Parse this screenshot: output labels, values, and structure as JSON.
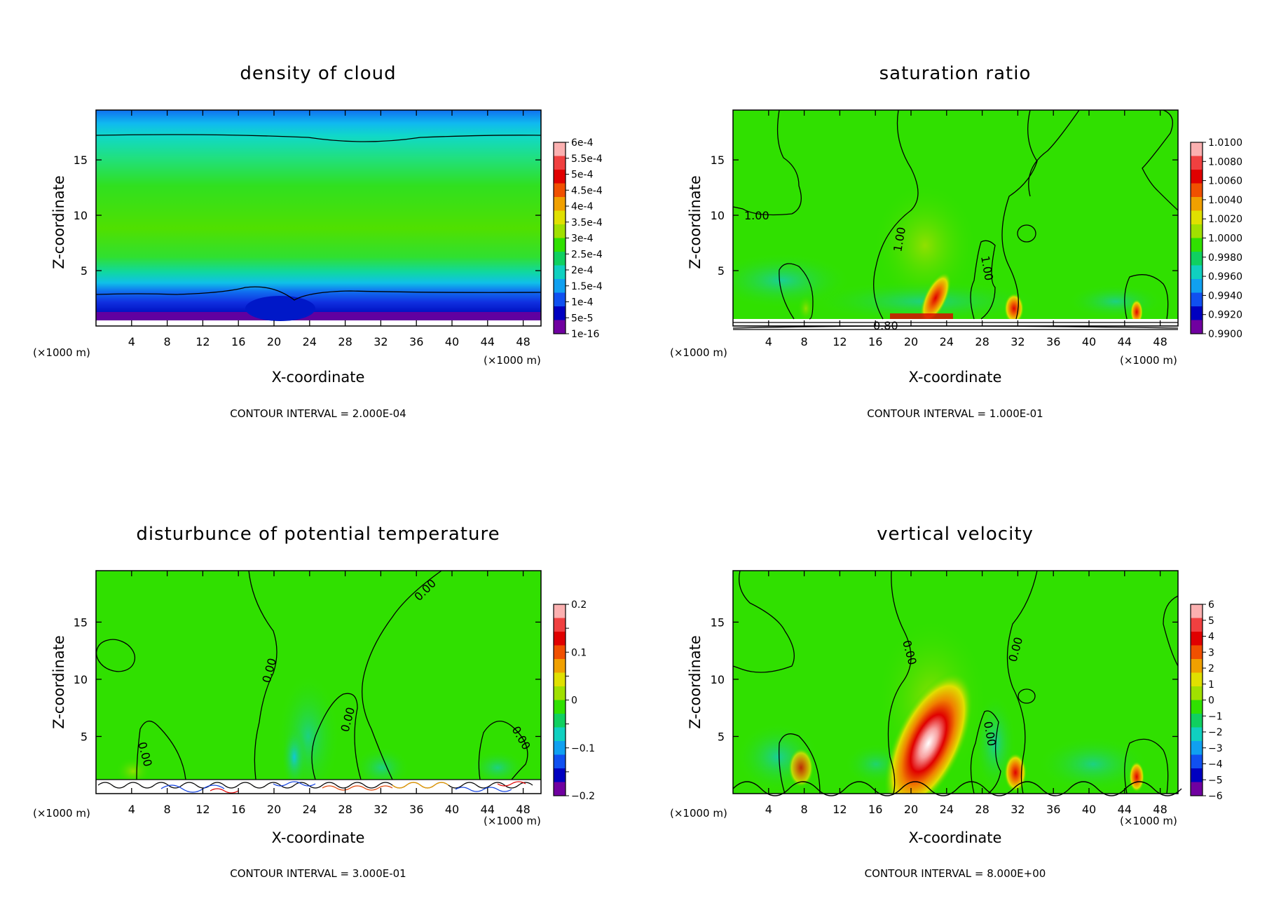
{
  "chart_data": [
    {
      "type": "contour",
      "title": "density of cloud",
      "xlabel": "X-coordinate",
      "ylabel": "Z-coordinate",
      "x_unit": "(×1000 m)",
      "z_unit": "(×1000 m)",
      "x_ticks": [
        "4",
        "8",
        "12",
        "16",
        "20",
        "24",
        "28",
        "32",
        "36",
        "40",
        "44",
        "48"
      ],
      "z_ticks": [
        "5",
        "10",
        "15"
      ],
      "xlim": [
        0,
        50
      ],
      "zlim": [
        0,
        19.5
      ],
      "footer": "CONTOUR INTERVAL = 2.000E-04",
      "colorbar_labels": [
        "6e-4",
        "5.5e-4",
        "5e-4",
        "4.5e-4",
        "4e-4",
        "3.5e-4",
        "3e-4",
        "2.5e-4",
        "2e-4",
        "1.5e-4",
        "1e-4",
        "5e-5",
        "1e-16"
      ],
      "contour_labels": []
    },
    {
      "type": "contour",
      "title": "saturation ratio",
      "xlabel": "X-coordinate",
      "ylabel": "Z-coordinate",
      "x_unit": "(×1000 m)",
      "z_unit": "(×1000 m)",
      "x_ticks": [
        "4",
        "8",
        "12",
        "16",
        "20",
        "24",
        "28",
        "32",
        "36",
        "40",
        "44",
        "48"
      ],
      "z_ticks": [
        "5",
        "10",
        "15"
      ],
      "xlim": [
        0,
        50
      ],
      "zlim": [
        0,
        19.5
      ],
      "footer": "CONTOUR INTERVAL = 1.000E-01",
      "colorbar_labels": [
        "1.0100",
        "1.0080",
        "1.0060",
        "1.0040",
        "1.0020",
        "1.0000",
        "0.9980",
        "0.9960",
        "0.9940",
        "0.9920",
        "0.9900"
      ],
      "contour_labels": [
        "1.00",
        "1.00",
        "1.00",
        "0.80"
      ]
    },
    {
      "type": "contour",
      "title": "disturbunce of potential temperature",
      "xlabel": "X-coordinate",
      "ylabel": "Z-coordinate",
      "x_unit": "(×1000 m)",
      "z_unit": "(×1000 m)",
      "x_ticks": [
        "4",
        "8",
        "12",
        "16",
        "20",
        "24",
        "28",
        "32",
        "36",
        "40",
        "44",
        "48"
      ],
      "z_ticks": [
        "5",
        "10",
        "15"
      ],
      "xlim": [
        0,
        50
      ],
      "zlim": [
        0,
        19.5
      ],
      "footer": "CONTOUR INTERVAL = 3.000E-01",
      "colorbar_labels": [
        "0.2",
        "",
        "0.1",
        "",
        "0",
        "",
        "−0.1",
        "",
        "−0.2"
      ],
      "contour_labels": [
        "0.00",
        "0.00",
        "0.00",
        "0.00",
        "0.00"
      ]
    },
    {
      "type": "contour",
      "title": "vertical velocity",
      "xlabel": "X-coordinate",
      "ylabel": "Z-coordinate",
      "x_unit": "(×1000 m)",
      "z_unit": "(×1000 m)",
      "x_ticks": [
        "4",
        "8",
        "12",
        "16",
        "20",
        "24",
        "28",
        "32",
        "36",
        "40",
        "44",
        "48"
      ],
      "z_ticks": [
        "5",
        "10",
        "15"
      ],
      "xlim": [
        0,
        50
      ],
      "zlim": [
        0,
        19.5
      ],
      "footer": "CONTOUR INTERVAL = 8.000E+00",
      "colorbar_labels": [
        "6",
        "5",
        "4",
        "3",
        "2",
        "1",
        "0",
        "−1",
        "−2",
        "−3",
        "−4",
        "−5",
        "−6"
      ],
      "contour_labels": [
        "0.00",
        "0.00",
        "0.00"
      ]
    }
  ],
  "colors": {
    "palette": [
      "#fbb0b0",
      "#f04040",
      "#e00000",
      "#f05000",
      "#f0a000",
      "#e0e000",
      "#a0e000",
      "#30e000",
      "#10d060",
      "#10d0c0",
      "#10a0f0",
      "#1050f0",
      "#0000c0",
      "#7000a0"
    ]
  }
}
